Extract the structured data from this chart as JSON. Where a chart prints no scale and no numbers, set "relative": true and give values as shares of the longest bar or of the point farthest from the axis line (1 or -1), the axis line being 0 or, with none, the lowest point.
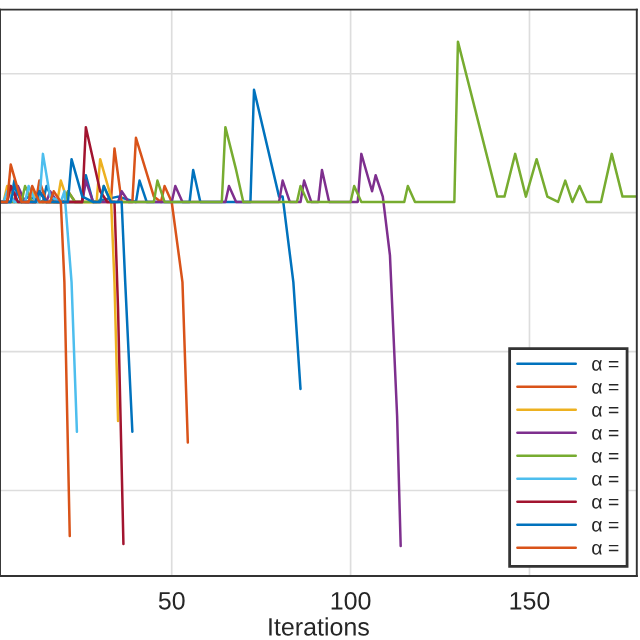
{
  "chart_data": {
    "type": "line",
    "xlabel": "Iterations",
    "relative": true,
    "xlim": [
      2,
      180
    ],
    "xticks": [
      50,
      100,
      150
    ],
    "tick_labels": "x",
    "grid": true,
    "legend": "bottom right",
    "line_style": "solid",
    "series": [
      {
        "name": "α =",
        "color": "#0072bd",
        "x": [
          2,
          5,
          6,
          8,
          10,
          14,
          15,
          17,
          20,
          25,
          26,
          28,
          35,
          40,
          41,
          43,
          50,
          55,
          56,
          58,
          65,
          72,
          73,
          80,
          81,
          84,
          86
        ],
        "values": [
          0.7,
          0.7,
          0.74,
          0.7,
          0.71,
          0.7,
          0.73,
          0.7,
          0.7,
          0.7,
          0.75,
          0.7,
          0.71,
          0.7,
          0.74,
          0.7,
          0.7,
          0.7,
          0.76,
          0.7,
          0.7,
          0.7,
          0.91,
          0.71,
          0.71,
          0.55,
          0.35
        ]
      },
      {
        "name": "α =",
        "color": "#d95319",
        "x": [
          2,
          4,
          5,
          7,
          12,
          13,
          15,
          20,
          21,
          23,
          30,
          33,
          34,
          36,
          39,
          40,
          45,
          47,
          48,
          50,
          53,
          54.5
        ],
        "values": [
          0.7,
          0.7,
          0.73,
          0.7,
          0.7,
          0.74,
          0.7,
          0.7,
          0.72,
          0.7,
          0.7,
          0.7,
          0.8,
          0.7,
          0.7,
          0.82,
          0.71,
          0.7,
          0.73,
          0.7,
          0.55,
          0.25
        ]
      },
      {
        "name": "α =",
        "color": "#edb120",
        "x": [
          2,
          3,
          4,
          6,
          10,
          11,
          13,
          18,
          19,
          21,
          26,
          29,
          30,
          33,
          34,
          35
        ],
        "values": [
          0.7,
          0.7,
          0.73,
          0.7,
          0.7,
          0.72,
          0.7,
          0.7,
          0.74,
          0.7,
          0.7,
          0.7,
          0.78,
          0.71,
          0.55,
          0.29
        ]
      },
      {
        "name": "α =",
        "color": "#7e2f8e",
        "x": [
          2,
          6,
          7,
          9,
          15,
          16,
          18,
          25,
          26,
          28,
          35,
          36,
          38,
          45,
          50,
          51,
          53,
          60,
          65,
          66,
          68,
          75,
          80,
          81,
          83,
          86,
          87,
          89,
          91,
          92,
          94,
          98,
          102,
          103,
          106,
          107,
          109,
          111,
          113,
          114
        ],
        "values": [
          0.7,
          0.7,
          0.73,
          0.7,
          0.7,
          0.72,
          0.7,
          0.7,
          0.74,
          0.7,
          0.7,
          0.72,
          0.7,
          0.7,
          0.7,
          0.73,
          0.7,
          0.7,
          0.7,
          0.73,
          0.7,
          0.7,
          0.7,
          0.74,
          0.7,
          0.7,
          0.74,
          0.7,
          0.7,
          0.76,
          0.7,
          0.7,
          0.7,
          0.79,
          0.72,
          0.75,
          0.71,
          0.6,
          0.3,
          0.056
        ]
      },
      {
        "name": "α =",
        "color": "#77ac30",
        "x": [
          2,
          8,
          9,
          11,
          20,
          21,
          23,
          30,
          31,
          33,
          40,
          45,
          46,
          48,
          55,
          60,
          64,
          65,
          68,
          70,
          72,
          78,
          85,
          86,
          88,
          95,
          100,
          101,
          103,
          110,
          115,
          116,
          118,
          125,
          129,
          130,
          141,
          143,
          146,
          149,
          152,
          155,
          158,
          160,
          162,
          164,
          166,
          170,
          173,
          176,
          180
        ],
        "values": [
          0.7,
          0.7,
          0.73,
          0.7,
          0.7,
          0.72,
          0.7,
          0.7,
          0.73,
          0.7,
          0.7,
          0.7,
          0.74,
          0.7,
          0.7,
          0.7,
          0.7,
          0.84,
          0.76,
          0.7,
          0.7,
          0.7,
          0.7,
          0.73,
          0.7,
          0.7,
          0.7,
          0.73,
          0.7,
          0.7,
          0.7,
          0.73,
          0.7,
          0.7,
          0.7,
          1.0,
          0.71,
          0.71,
          0.79,
          0.71,
          0.78,
          0.71,
          0.7,
          0.74,
          0.7,
          0.73,
          0.7,
          0.7,
          0.79,
          0.71,
          0.71
        ]
      },
      {
        "name": "α =",
        "color": "#4dbeee",
        "x": [
          2,
          3,
          4,
          6,
          9,
          10,
          12,
          13,
          14,
          16,
          19,
          20,
          22,
          23.5
        ],
        "values": [
          0.7,
          0.7,
          0.72,
          0.7,
          0.7,
          0.73,
          0.7,
          0.7,
          0.79,
          0.71,
          0.7,
          0.72,
          0.55,
          0.27
        ]
      },
      {
        "name": "α =",
        "color": "#a2142f",
        "x": [
          2,
          4,
          5,
          7,
          12,
          13,
          15,
          20,
          25,
          26,
          30,
          32,
          34,
          35,
          36.5
        ],
        "values": [
          0.7,
          0.7,
          0.73,
          0.7,
          0.7,
          0.72,
          0.7,
          0.7,
          0.7,
          0.84,
          0.72,
          0.7,
          0.7,
          0.5,
          0.06
        ]
      },
      {
        "name": "α =",
        "color": "#0072bd",
        "x": [
          2,
          5,
          6,
          8,
          12,
          13,
          15,
          21,
          22,
          25,
          28,
          30,
          31,
          33,
          36,
          37,
          39
        ],
        "values": [
          0.7,
          0.7,
          0.73,
          0.7,
          0.7,
          0.72,
          0.7,
          0.7,
          0.78,
          0.71,
          0.7,
          0.7,
          0.73,
          0.7,
          0.7,
          0.55,
          0.27
        ]
      },
      {
        "name": "α =",
        "color": "#d95319",
        "x": [
          2,
          4,
          5,
          8,
          10,
          11,
          13,
          16,
          17,
          19,
          20,
          21.5
        ],
        "values": [
          0.7,
          0.7,
          0.77,
          0.7,
          0.7,
          0.73,
          0.7,
          0.7,
          0.72,
          0.7,
          0.55,
          0.075
        ]
      }
    ]
  }
}
